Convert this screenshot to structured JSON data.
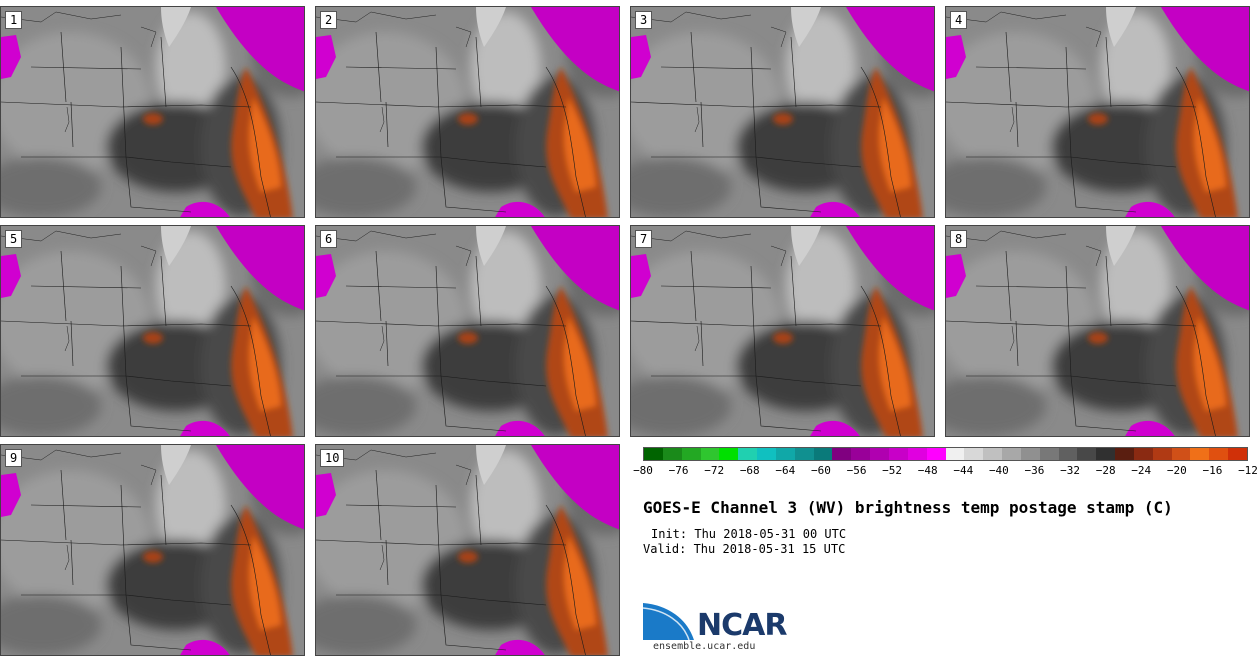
{
  "panels": [
    {
      "label": "1"
    },
    {
      "label": "2"
    },
    {
      "label": "3"
    },
    {
      "label": "4"
    },
    {
      "label": "5"
    },
    {
      "label": "6"
    },
    {
      "label": "7"
    },
    {
      "label": "8"
    },
    {
      "label": "9"
    },
    {
      "label": "10"
    }
  ],
  "colorbar": {
    "ticks": [
      "−80",
      "−76",
      "−72",
      "−68",
      "−64",
      "−60",
      "−56",
      "−52",
      "−48",
      "−44",
      "−40",
      "−36",
      "−32",
      "−28",
      "−24",
      "−20",
      "−16",
      "−12"
    ],
    "colors": [
      "#006400",
      "#1a8a1a",
      "#23a823",
      "#2fc62f",
      "#00e000",
      "#20d0b0",
      "#10c0c0",
      "#10a8a8",
      "#109090",
      "#0a7a7a",
      "#800080",
      "#990099",
      "#b000b0",
      "#c800c8",
      "#e000e0",
      "#ff00ff",
      "#f0f0f0",
      "#d8d8d8",
      "#c0c0c0",
      "#a8a8a8",
      "#909090",
      "#787878",
      "#606060",
      "#484848",
      "#303030",
      "#5a1e10",
      "#8a2a12",
      "#b03a14",
      "#d05018",
      "#f07018",
      "#e05010",
      "#d03008"
    ]
  },
  "title": "GOES-E Channel 3 (WV) brightness temp postage stamp (C)",
  "init": "Init: Thu 2018-05-31 00 UTC",
  "valid": "Valid: Thu 2018-05-31 15 UTC",
  "logo": {
    "text": "NCAR",
    "url": "ensemble.ucar.edu"
  }
}
